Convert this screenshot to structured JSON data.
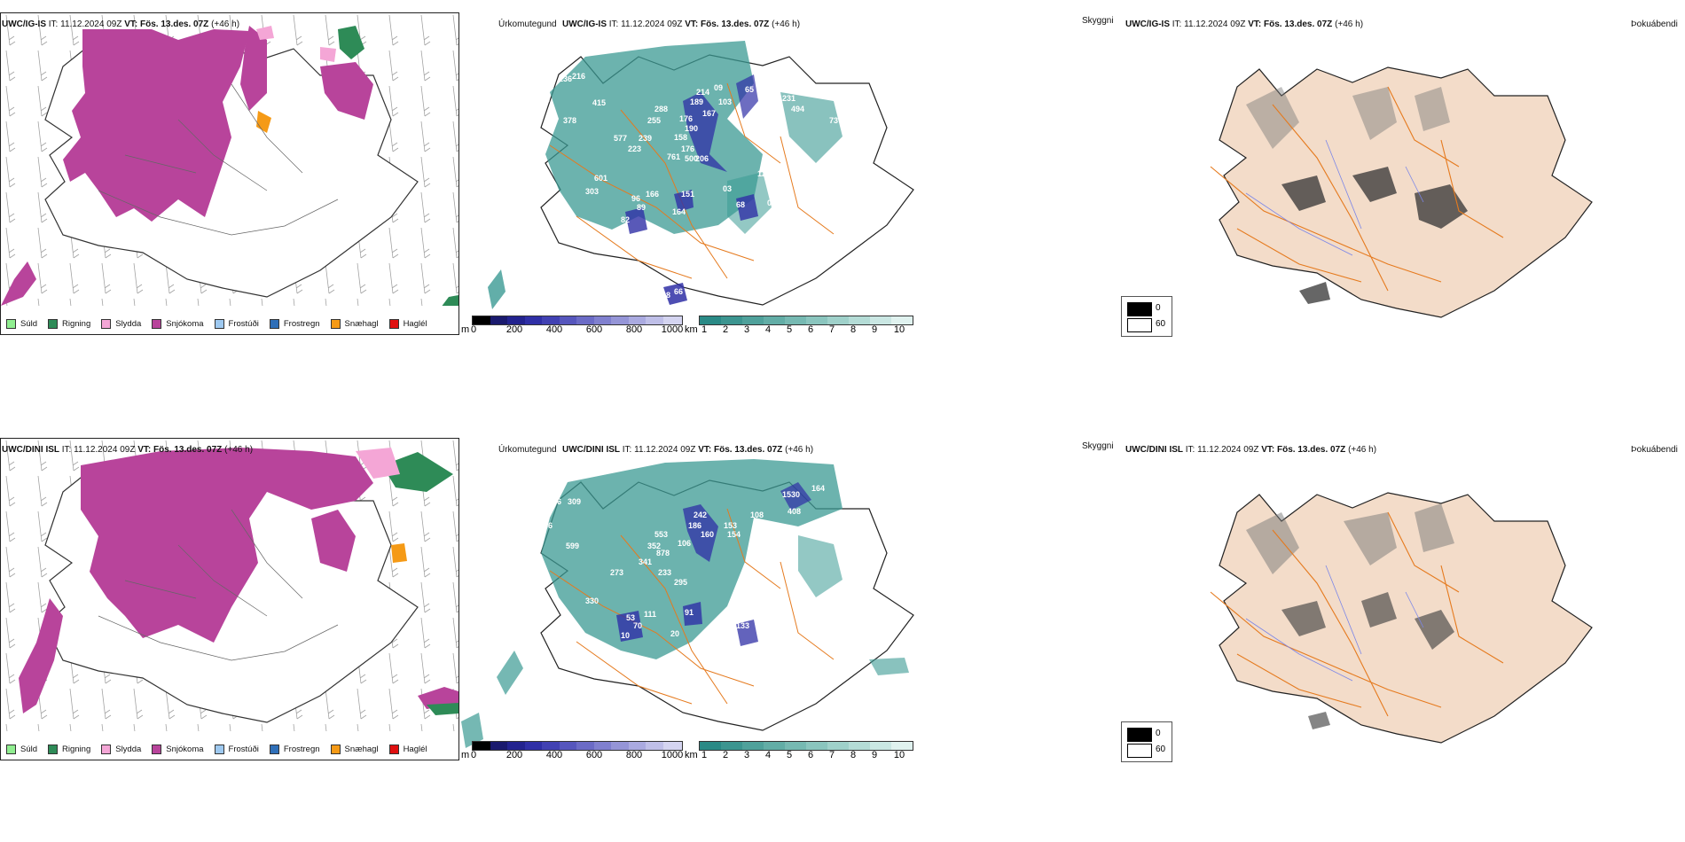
{
  "rows": [
    {
      "model": "UWC/IG-IS",
      "it_label": "IT:",
      "it_value": "11.12.2024 09Z",
      "vt_label": "VT:",
      "vt_value": "Fös. 13.des. 07Z",
      "lead": "(+46 h)",
      "panel1_title": "Úrkomutegund",
      "panel2_title": "Skyggni",
      "panel3_title": "Þokuábendi",
      "cloud_labels": [
        "236",
        "216",
        "415",
        "169",
        "378",
        "288",
        "255",
        "577",
        "239",
        "223",
        "601",
        "303",
        "96",
        "89",
        "82",
        "166",
        "151",
        "164",
        "214",
        "189",
        "09",
        "103",
        "167",
        "176",
        "190",
        "158",
        "176",
        "761",
        "500",
        "206",
        "65",
        "158",
        "231",
        "494",
        "10",
        "73",
        "12",
        "68",
        "03",
        "05",
        "08",
        "66"
      ]
    },
    {
      "model": "UWC/DINI ISL",
      "it_label": "IT:",
      "it_value": "11.12.2024 09Z",
      "vt_label": "VT:",
      "vt_value": "Fös. 13.des. 07Z",
      "lead": "(+46 h)",
      "panel1_title": "Úrkomutegund",
      "panel2_title": "Skyggni",
      "panel3_title": "Þokuábendi",
      "cloud_labels": [
        "766",
        "309",
        "366",
        "599",
        "553",
        "352",
        "878",
        "341",
        "273",
        "233",
        "295",
        "330",
        "242",
        "186",
        "160",
        "106",
        "154",
        "153",
        "108",
        "76",
        "1530",
        "408",
        "226",
        "164",
        "27",
        "91",
        "111",
        "70",
        "20",
        "19",
        "133",
        "21",
        "53",
        "10"
      ]
    }
  ],
  "precip_legend": [
    {
      "label": "Súld",
      "color": "#90ee90"
    },
    {
      "label": "Rigning",
      "color": "#2e8b57"
    },
    {
      "label": "Slydda",
      "color": "#f4a6d6"
    },
    {
      "label": "Snjókoma",
      "color": "#b8449b"
    },
    {
      "label": "Frostúði",
      "color": "#9ec9f0"
    },
    {
      "label": "Frostregn",
      "color": "#2f6fb8"
    },
    {
      "label": "Snæhagl",
      "color": "#f59a16"
    },
    {
      "label": "Haglél",
      "color": "#e01010"
    }
  ],
  "cloud_base_scale": {
    "unit": "m",
    "ticks": [
      "0",
      "200",
      "400",
      "600",
      "800",
      "1000"
    ],
    "colors": [
      "#000000",
      "#1a1a6e",
      "#23238f",
      "#2f2fa6",
      "#4141b3",
      "#5656bd",
      "#6b6bc6",
      "#8080cf",
      "#9595d7",
      "#aaaae0",
      "#bfbfe8",
      "#d4d4f0"
    ]
  },
  "visibility_scale": {
    "unit": "km",
    "ticks": [
      "1",
      "2",
      "3",
      "4",
      "5",
      "6",
      "7",
      "8",
      "9",
      "10"
    ],
    "colors": [
      "#2a8a86",
      "#3c9590",
      "#4fa19b",
      "#62ada6",
      "#76b9b2",
      "#8ac5be",
      "#9fd1ca",
      "#b4dcd6",
      "#cae7e3",
      "#e0f2ef"
    ]
  },
  "fog_legend": {
    "dark_value": "0",
    "light_value": "60"
  },
  "colors": {
    "snow": "#b8449b",
    "rain": "#2e8b57",
    "sleet": "#f4a6d6",
    "ice_pellets": "#f59a16",
    "visibility": "#3b9a93",
    "roads": "#e57a1e",
    "rivers": "#7b86e8",
    "land_fog": "#f3dcc9",
    "cloud_base": "#2f2fa6"
  }
}
